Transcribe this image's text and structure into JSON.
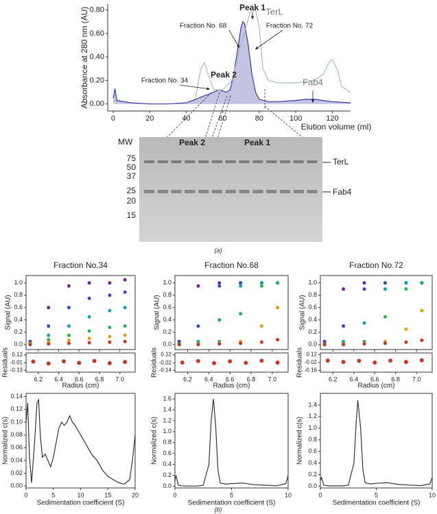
{
  "chart_data": [
    {
      "type": "area",
      "ylabel": "Absorbance at 280 nm (AU)",
      "xlabel": "Elution volume (ml)",
      "xlim": [
        -3,
        130
      ],
      "xticks": [
        0,
        20,
        40,
        60,
        80,
        100,
        120
      ],
      "ylim": [
        -0.06,
        0.85
      ],
      "yticks": [
        {
          "value": 0,
          "label": "0.00"
        },
        {
          "value": 0.2,
          "label": "0.20"
        },
        {
          "value": 0.4,
          "label": "0.40"
        },
        {
          "value": 0.6,
          "label": "0.60"
        },
        {
          "value": 0.8,
          "label": "0.80"
        }
      ],
      "series": [
        {
          "color": "#3a3aa0",
          "filled": true,
          "x": [
            0,
            1,
            2,
            10,
            20,
            30,
            40,
            45,
            50,
            55,
            58,
            60,
            62,
            64,
            66,
            68,
            70,
            71,
            72,
            74,
            76,
            78,
            80,
            85,
            90,
            100,
            105,
            110,
            115,
            120,
            130
          ],
          "values": [
            0.05,
            0.13,
            0.03,
            0.01,
            0.0,
            0.0,
            0.01,
            0.04,
            0.07,
            0.1,
            0.12,
            0.11,
            0.1,
            0.12,
            0.25,
            0.45,
            0.65,
            0.7,
            0.68,
            0.5,
            0.25,
            0.1,
            0.04,
            0.02,
            0.02,
            0.03,
            0.04,
            0.04,
            0.03,
            0.02,
            0.01
          ]
        },
        {
          "color": "#a9bdb3",
          "filled": false,
          "x": [
            45,
            48,
            50,
            52,
            55,
            60,
            65,
            70,
            75,
            78,
            80,
            82,
            85,
            90,
            100,
            110,
            115,
            118,
            120,
            123,
            125,
            130
          ],
          "values": [
            0.05,
            0.3,
            0.35,
            0.25,
            0.12,
            0.12,
            0.2,
            0.5,
            0.78,
            0.8,
            0.65,
            0.3,
            0.2,
            0.18,
            0.18,
            0.2,
            0.25,
            0.35,
            0.38,
            0.28,
            0.15,
            0.1
          ]
        }
      ],
      "annotations": [
        "Peak 1",
        "Peak 2",
        "Fraction No. 68",
        "Fraction No. 72",
        "Fraction No. 34",
        "TerL",
        "Fab4"
      ]
    },
    {
      "type": "scatter",
      "title": "Fraction No.34",
      "ylabel": "Signal (AU)",
      "xlabel": "Radius (cm)",
      "xlim": [
        6.08,
        7.15
      ],
      "xticks": [
        6.2,
        6.4,
        6.6,
        6.8,
        {
          "value": 7,
          "label": "7.0"
        }
      ],
      "ylim": [
        -0.08,
        1.12
      ],
      "yticks": [
        {
          "value": 0,
          "label": "0.0"
        },
        0.2,
        0.4,
        0.6,
        0.8,
        {
          "value": 1,
          "label": "1.0"
        }
      ],
      "x": [
        6.12,
        6.3,
        6.5,
        6.7,
        6.9,
        7.05
      ],
      "series": [
        {
          "color": "#6a2c91",
          "values": [
            0.05,
            0.6,
            0.95,
            1.0,
            1.0,
            1.05
          ]
        },
        {
          "color": "#3b4cc0",
          "values": [
            0.03,
            0.3,
            0.6,
            0.75,
            0.8,
            0.85
          ]
        },
        {
          "color": "#1f9db5",
          "values": [
            0.02,
            0.15,
            0.3,
            0.45,
            0.55,
            0.6
          ]
        },
        {
          "color": "#2cb05a",
          "values": [
            0.02,
            0.08,
            0.15,
            0.22,
            0.28,
            0.3
          ]
        },
        {
          "color": "#e0a020",
          "values": [
            0.01,
            0.04,
            0.07,
            0.1,
            0.13,
            0.15
          ]
        },
        {
          "color": "#c0392b",
          "values": [
            0.0,
            0.01,
            0.02,
            0.03,
            0.04,
            0.05
          ]
        }
      ],
      "residuals": {
        "ylabel": "Residuals",
        "ylim": [
          -0.16,
          0.15
        ],
        "yticks": [
          0.12,
          -0.01,
          -0.13
        ],
        "color": "#c0392b",
        "x": [
          6.15,
          6.3,
          6.45,
          6.6,
          6.75,
          6.9,
          7.05
        ],
        "values": [
          0.01,
          -0.02,
          0.015,
          -0.01,
          0.02,
          -0.015,
          0.005
        ]
      }
    },
    {
      "type": "scatter",
      "title": "Fraction No.68",
      "ylabel": "Signal (AU)",
      "xlabel": "Radius (cm)",
      "xlim": [
        6.08,
        7.15
      ],
      "xticks": [
        6.2,
        6.4,
        6.6,
        6.8,
        {
          "value": 7,
          "label": "7.0"
        }
      ],
      "ylim": [
        -0.08,
        1.12
      ],
      "yticks": [
        {
          "value": 0,
          "label": "0.0"
        },
        0.2,
        0.4,
        0.6,
        0.8,
        {
          "value": 1,
          "label": "1.0"
        }
      ],
      "x": [
        6.12,
        6.3,
        6.5,
        6.7,
        6.9,
        7.05
      ],
      "series": [
        {
          "color": "#6a2c91",
          "values": [
            0.05,
            0.95,
            1.0,
            1.0,
            1.0,
            1.0
          ]
        },
        {
          "color": "#3b4cc0",
          "values": [
            0.02,
            0.3,
            0.95,
            1.0,
            1.0,
            1.0
          ]
        },
        {
          "color": "#1f9db5",
          "values": [
            0.01,
            0.05,
            0.4,
            0.95,
            1.0,
            1.0
          ]
        },
        {
          "color": "#2cb05a",
          "values": [
            0.0,
            0.02,
            0.05,
            0.5,
            0.95,
            1.0
          ]
        },
        {
          "color": "#e0a020",
          "values": [
            0.0,
            0.01,
            0.02,
            0.05,
            0.3,
            0.6
          ]
        },
        {
          "color": "#c0392b",
          "values": [
            0.0,
            0.0,
            0.01,
            0.02,
            0.04,
            0.08
          ]
        }
      ],
      "residuals": {
        "ylabel": "Residuals",
        "ylim": [
          -0.17,
          0.15
        ],
        "yticks": [
          0.12,
          -0.02,
          -0.14
        ],
        "color": "#c0392b",
        "x": [
          6.15,
          6.3,
          6.45,
          6.6,
          6.75,
          6.9,
          7.05
        ],
        "values": [
          -0.01,
          0.015,
          -0.02,
          0.01,
          -0.015,
          0.02,
          -0.01
        ]
      }
    },
    {
      "type": "scatter",
      "title": "Fraction No.72",
      "ylabel": "Signal (AU)",
      "xlabel": "Radius (cm)",
      "xlim": [
        6.08,
        7.15
      ],
      "xticks": [
        6.2,
        6.4,
        6.6,
        6.8,
        {
          "value": 7,
          "label": "7.0"
        }
      ],
      "ylim": [
        -0.08,
        1.12
      ],
      "yticks": [
        {
          "value": 0,
          "label": "0.0"
        },
        0.2,
        0.4,
        0.6,
        0.8,
        {
          "value": 1,
          "label": "1.0"
        }
      ],
      "x": [
        6.12,
        6.3,
        6.5,
        6.7,
        6.9,
        7.05
      ],
      "series": [
        {
          "color": "#6a2c91",
          "values": [
            0.05,
            0.9,
            1.0,
            1.0,
            1.0,
            1.0
          ]
        },
        {
          "color": "#3b4cc0",
          "values": [
            0.02,
            0.3,
            0.9,
            1.0,
            1.0,
            1.0
          ]
        },
        {
          "color": "#1f9db5",
          "values": [
            0.01,
            0.05,
            0.35,
            0.9,
            1.0,
            1.0
          ]
        },
        {
          "color": "#2cb05a",
          "values": [
            0.0,
            0.02,
            0.05,
            0.45,
            0.9,
            1.0
          ]
        },
        {
          "color": "#e0a020",
          "values": [
            0.0,
            0.01,
            0.02,
            0.05,
            0.25,
            0.55
          ]
        },
        {
          "color": "#c0392b",
          "values": [
            0.0,
            0.0,
            0.01,
            0.02,
            0.04,
            0.07
          ]
        }
      ],
      "residuals": {
        "ylabel": "Residuals",
        "ylim": [
          -0.19,
          0.15
        ],
        "yticks": [
          0.12,
          -0.02,
          -0.16
        ],
        "color": "#c0392b",
        "x": [
          6.15,
          6.3,
          6.45,
          6.6,
          6.75,
          6.9,
          7.05
        ],
        "values": [
          0.015,
          -0.01,
          0.01,
          -0.02,
          0.015,
          -0.01,
          0.02
        ]
      }
    },
    {
      "type": "line",
      "ylabel": "Normalized c(s)",
      "xlabel": "Sedimentation coefficient (S)",
      "color": "#333333",
      "xlim": [
        0,
        20
      ],
      "xticks": [
        0,
        5,
        10,
        15,
        20
      ],
      "ylim": [
        -0.003,
        0.145
      ],
      "yticks": [
        {
          "value": 0,
          "label": "0.00"
        },
        0.02,
        0.04,
        0.06,
        0.08,
        {
          "value": 0.1,
          "label": "0.10"
        },
        0.12,
        0.14
      ],
      "x": [
        0,
        0.3,
        0.6,
        1,
        1.5,
        2,
        2.3,
        2.6,
        3,
        3.5,
        4,
        4.5,
        5,
        6,
        6.5,
        7,
        7.5,
        8,
        8.5,
        9,
        10,
        11,
        12,
        13,
        14,
        15,
        16,
        17,
        18,
        19,
        19.5,
        20
      ],
      "values": [
        0.1,
        0.13,
        0.05,
        0.005,
        0.06,
        0.13,
        0.135,
        0.08,
        0.045,
        0.05,
        0.04,
        0.03,
        0.045,
        0.09,
        0.1,
        0.095,
        0.1,
        0.11,
        0.1,
        0.095,
        0.08,
        0.065,
        0.05,
        0.04,
        0.025,
        0.015,
        0.01,
        0.005,
        0.003,
        0.01,
        0.04,
        0.08
      ]
    },
    {
      "type": "line",
      "ylabel": "Normalized c(s)",
      "xlabel": "Sedimentation coefficient (S)",
      "color": "#333333",
      "xlim": [
        0,
        10
      ],
      "xticks": [
        0,
        5,
        10
      ],
      "ylim": [
        -0.03,
        1.7
      ],
      "yticks": [
        {
          "value": 0,
          "label": "0.0"
        },
        0.2,
        0.4,
        0.6,
        0.8,
        {
          "value": 1,
          "label": "1.0"
        },
        1.2,
        1.4,
        1.6
      ],
      "x": [
        0,
        0.1,
        0.3,
        0.6,
        1,
        2,
        2.5,
        3,
        3.2,
        3.4,
        3.6,
        3.8,
        4,
        4.5,
        5,
        6,
        7,
        8,
        9,
        9.8,
        10
      ],
      "values": [
        0.1,
        0.2,
        0.02,
        0.01,
        0.005,
        0.005,
        0.02,
        0.4,
        1.2,
        1.6,
        1.1,
        0.3,
        0.06,
        0.04,
        0.05,
        0.06,
        0.03,
        0.02,
        0.01,
        0.05,
        0.2
      ]
    },
    {
      "type": "line",
      "ylabel": "Normalized c(s)",
      "xlabel": "Sedimentation coefficient (S)",
      "color": "#333333",
      "xlim": [
        0,
        10
      ],
      "xticks": [
        0,
        5,
        10
      ],
      "ylim": [
        -0.03,
        1.6
      ],
      "yticks": [
        {
          "value": 0,
          "label": "0.0"
        },
        0.2,
        0.4,
        0.6,
        0.8,
        {
          "value": 1,
          "label": "1.0"
        },
        1.2,
        1.4
      ],
      "x": [
        0,
        0.1,
        0.3,
        0.6,
        1,
        2,
        2.5,
        3,
        3.2,
        3.35,
        3.6,
        3.8,
        4,
        4.5,
        5,
        6,
        7,
        8,
        9,
        9.8,
        10
      ],
      "values": [
        0.1,
        0.15,
        0.02,
        0.01,
        0.005,
        0.005,
        0.02,
        0.4,
        1.1,
        1.48,
        1.0,
        0.3,
        0.06,
        0.04,
        0.05,
        0.06,
        0.03,
        0.02,
        0.01,
        0.04,
        0.15
      ]
    }
  ],
  "gel": {
    "mw_label": "MW",
    "markers": [
      "75",
      "50",
      "37",
      "25",
      "20",
      "15"
    ],
    "lanes": [
      "Peak 2",
      "Peak 1"
    ],
    "bands": [
      "TerL",
      "Fab4"
    ]
  },
  "panel_labels": [
    "(a)",
    "(b)"
  ]
}
